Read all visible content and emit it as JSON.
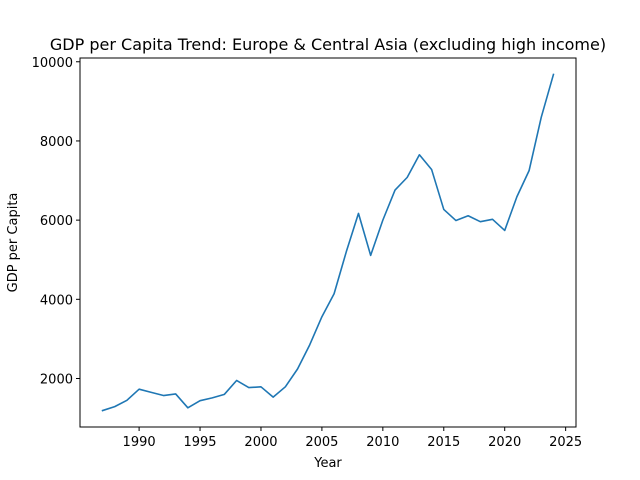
{
  "chart_data": {
    "type": "line",
    "title": "GDP per Capita Trend: Europe & Central Asia (excluding high income)",
    "xlabel": "Year",
    "ylabel": "GDP per Capita",
    "xlim": [
      1985.15,
      2025.85
    ],
    "ylim": [
      775,
      10095
    ],
    "xticks": [
      1990,
      1995,
      2000,
      2005,
      2010,
      2015,
      2020,
      2025
    ],
    "yticks": [
      2000,
      4000,
      6000,
      8000,
      10000
    ],
    "grid": false,
    "line_color": "#1f77b4",
    "series": [
      {
        "x": [
          1987,
          1988,
          1989,
          1990,
          1991,
          1992,
          1993,
          1994,
          1995,
          1996,
          1997,
          1998,
          1999,
          2000,
          2001,
          2002,
          2003,
          2004,
          2005,
          2006,
          2007,
          2008,
          2009,
          2010,
          2011,
          2012,
          2013,
          2014,
          2015,
          2016,
          2017,
          2018,
          2019,
          2020,
          2021,
          2022,
          2023,
          2024
        ],
        "values": [
          1190,
          1290,
          1450,
          1730,
          1650,
          1570,
          1610,
          1260,
          1440,
          1510,
          1600,
          1950,
          1770,
          1790,
          1530,
          1790,
          2240,
          2850,
          3560,
          4140,
          5200,
          6170,
          5110,
          6000,
          6760,
          7080,
          7650,
          7280,
          6270,
          5990,
          6110,
          5960,
          6020,
          5740,
          6590,
          7250,
          8600,
          9680
        ]
      }
    ]
  }
}
